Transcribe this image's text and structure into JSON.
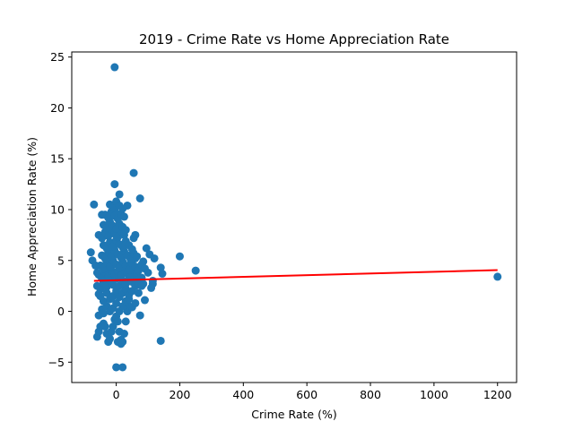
{
  "chart_data": {
    "type": "scatter",
    "title": "2019 -  Crime Rate vs Home Appreciation Rate",
    "xlabel": "Crime Rate (%)",
    "ylabel": "Home Appreciation Rate (%)",
    "xlim": [
      -140,
      1260
    ],
    "ylim": [
      -7,
      25.5
    ],
    "xticks": [
      0,
      200,
      400,
      600,
      800,
      1000,
      1200
    ],
    "yticks": [
      -5,
      0,
      5,
      10,
      15,
      20,
      25
    ],
    "grid": false,
    "legend": "none",
    "marker_color": "#1f77b4",
    "line_color": "#ff0000",
    "series": [
      {
        "kind": "points",
        "x": [
          -5,
          55,
          75,
          -5,
          10,
          -70,
          -5,
          35,
          -45,
          60,
          55,
          95,
          105,
          200,
          250,
          1200,
          140,
          145,
          60,
          120,
          115,
          85,
          90,
          75,
          140,
          0,
          20,
          15,
          5,
          -60,
          -55,
          -50,
          -40,
          -35,
          -30,
          -25,
          -20,
          -15,
          -10,
          -5,
          0,
          5,
          10,
          15,
          20,
          25,
          30,
          35,
          40,
          -55,
          -45,
          -40,
          -30,
          -20,
          -10,
          0,
          10,
          20,
          30,
          40,
          50,
          60,
          -50,
          -40,
          -30,
          -20,
          -10,
          0,
          10,
          20,
          30,
          40,
          50,
          60,
          70,
          -60,
          -50,
          -40,
          -30,
          -20,
          -10,
          0,
          10,
          20,
          30,
          40,
          50,
          60,
          70,
          80,
          -55,
          -45,
          -35,
          -25,
          -15,
          -5,
          5,
          15,
          25,
          35,
          45,
          55,
          65,
          75,
          -50,
          -40,
          -30,
          -20,
          -10,
          0,
          10,
          20,
          30,
          40,
          50,
          60,
          70,
          80,
          90,
          100,
          -45,
          -35,
          -25,
          -15,
          -5,
          5,
          15,
          25,
          35,
          45,
          55,
          65,
          -40,
          -30,
          -20,
          -10,
          0,
          10,
          20,
          30,
          40,
          50,
          -55,
          -45,
          -35,
          -25,
          -15,
          -5,
          5,
          15,
          25,
          -40,
          -30,
          -20,
          -10,
          0,
          10,
          20,
          30,
          -35,
          -25,
          -15,
          -5,
          5,
          15,
          25,
          -20,
          -10,
          0,
          10,
          20,
          -80,
          -75,
          -65,
          -60,
          -55,
          -50,
          110,
          115,
          85,
          80
        ],
        "y": [
          24,
          13.6,
          11.1,
          12.5,
          11.5,
          10.5,
          9.9,
          10.4,
          9.5,
          7.5,
          7.2,
          6.2,
          5.6,
          5.4,
          4,
          3.4,
          4.3,
          3.7,
          5.2,
          5.2,
          2.7,
          4.9,
          1.1,
          -0.4,
          -2.9,
          -5.5,
          -5.5,
          -3.2,
          -3.0,
          -2.5,
          -2.0,
          -1.5,
          -1.2,
          -1.5,
          -2.2,
          -3.0,
          -2.7,
          -2.0,
          -1.5,
          -0.8,
          -0.5,
          -1.0,
          -2.0,
          -2.8,
          -3.0,
          -2.2,
          -1.0,
          0.0,
          0.5,
          -0.4,
          0.2,
          -0.2,
          0.5,
          0.0,
          0.3,
          0.8,
          0.0,
          0.5,
          1.0,
          1.2,
          0.4,
          0.8,
          1.5,
          1.0,
          1.8,
          1.2,
          1.5,
          2.0,
          1.4,
          1.8,
          2.2,
          1.6,
          2.0,
          2.5,
          1.8,
          2.5,
          2.2,
          2.8,
          2.4,
          3.0,
          2.6,
          3.2,
          2.5,
          3.0,
          2.7,
          3.3,
          2.9,
          3.1,
          2.8,
          3.3,
          3.6,
          3.2,
          3.8,
          3.4,
          4.0,
          3.6,
          3.9,
          3.5,
          4.1,
          3.7,
          3.4,
          4.0,
          3.6,
          3.2,
          4.5,
          4.2,
          4.8,
          4.4,
          5.0,
          4.6,
          4.3,
          4.9,
          4.5,
          4.1,
          4.7,
          4.4,
          4.0,
          4.6,
          4.2,
          3.8,
          5.5,
          5.2,
          5.8,
          5.4,
          6.0,
          5.6,
          5.3,
          5.9,
          5.5,
          5.1,
          5.7,
          5.4,
          6.5,
          6.2,
          6.8,
          6.4,
          7.0,
          6.6,
          6.3,
          6.9,
          6.5,
          6.1,
          7.5,
          7.2,
          7.8,
          7.4,
          8.0,
          7.6,
          7.3,
          7.9,
          7.5,
          8.5,
          8.2,
          8.8,
          8.4,
          8.1,
          8.6,
          8.3,
          8.0,
          9.5,
          9.2,
          9.8,
          9.4,
          9.1,
          9.6,
          9.3,
          10.5,
          10.2,
          10.8,
          10.4,
          10.1,
          5.8,
          5.0,
          4.5,
          3.8,
          1.7,
          1.5,
          2.3,
          3.0,
          2.7,
          2.5
        ]
      },
      {
        "kind": "regression-line",
        "x": [
          -70,
          1200
        ],
        "y": [
          3.0,
          4.05
        ]
      }
    ]
  }
}
